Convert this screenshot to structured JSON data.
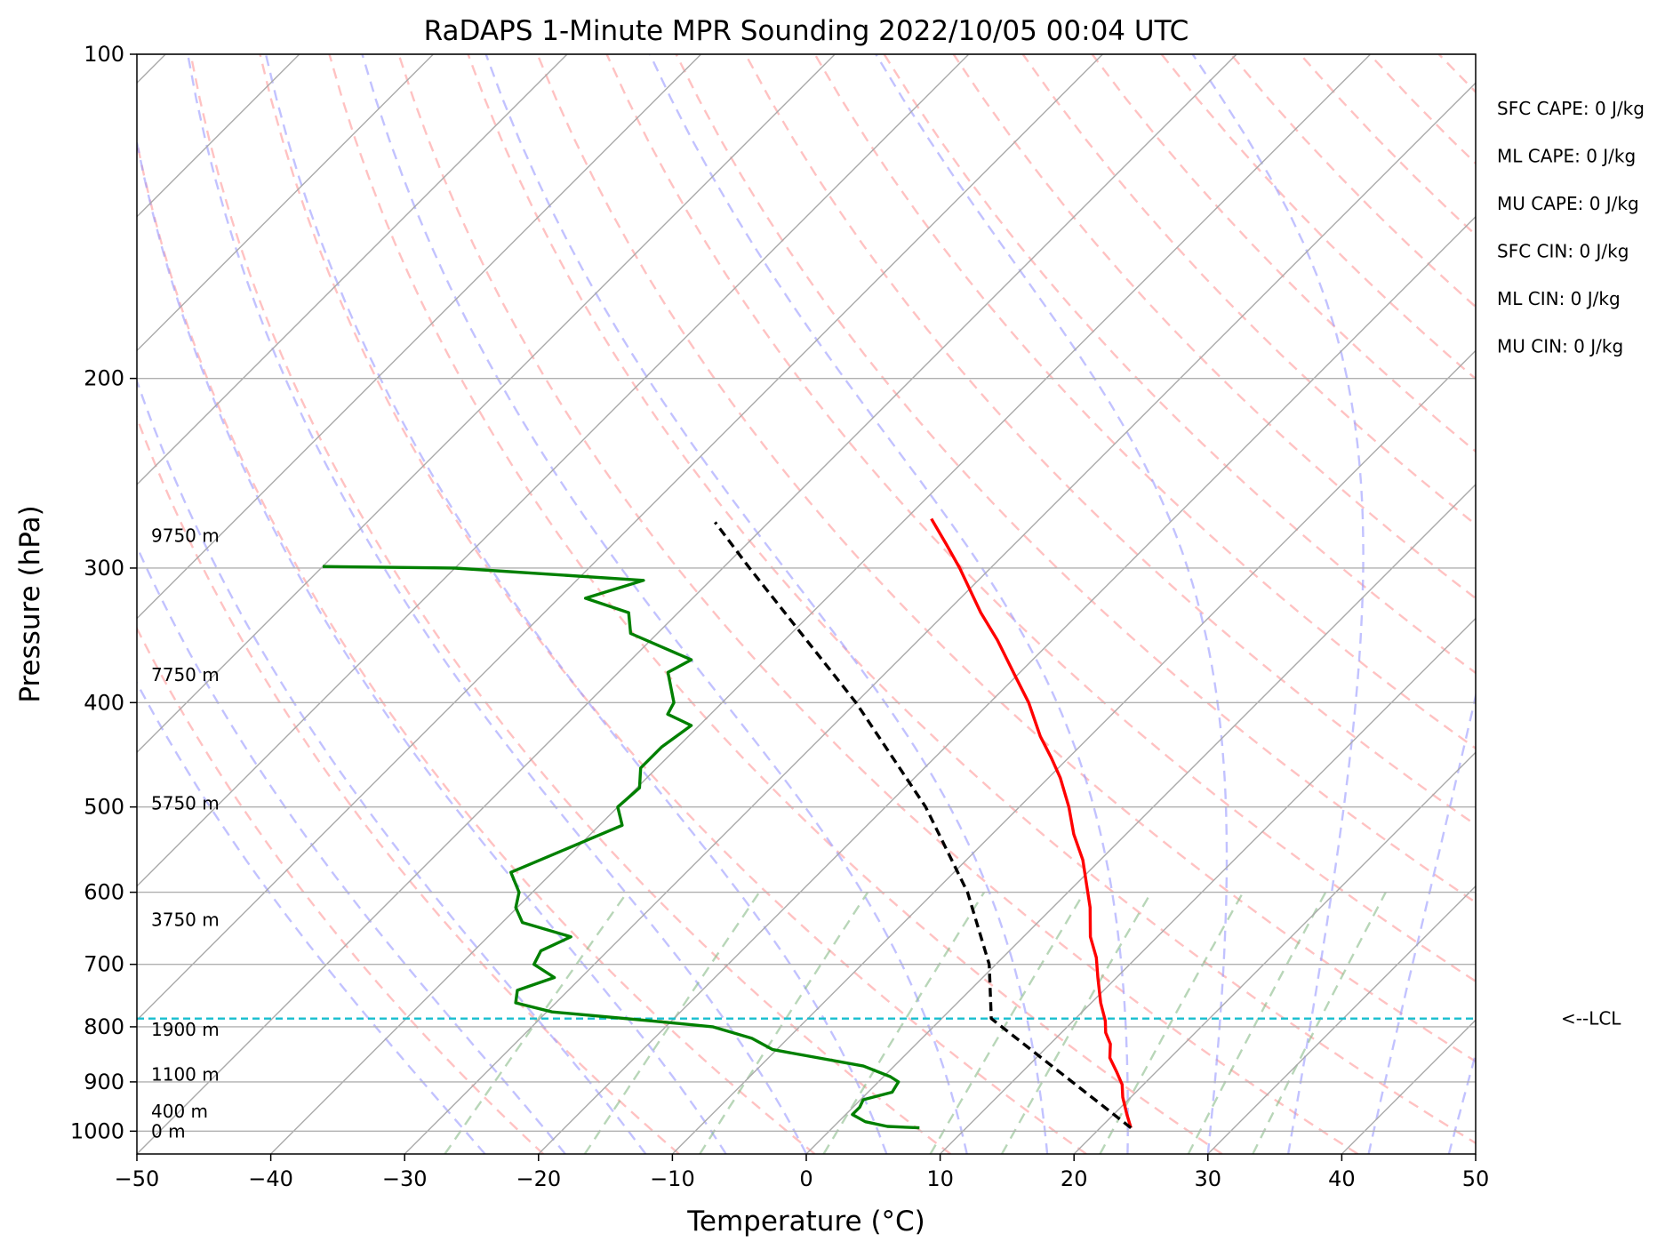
{
  "chart_data": {
    "type": "line",
    "title": "RaDAPS 1-Minute MPR Sounding 2022/10/05 00:04 UTC",
    "xlabel": "Temperature (°C)",
    "ylabel": "Pressure (hPa)",
    "xlim": [
      -50,
      50
    ],
    "ylim": [
      1050,
      100
    ],
    "y_scale": "log",
    "skew": "skew-T log-P",
    "grid": true,
    "xticks": [
      -50,
      -40,
      -30,
      -20,
      -10,
      0,
      10,
      20,
      30,
      40,
      50
    ],
    "xtick_labels": [
      "−50",
      "−40",
      "−30",
      "−20",
      "−10",
      "0",
      "10",
      "20",
      "30",
      "40",
      "50"
    ],
    "yticks": [
      100,
      200,
      300,
      400,
      500,
      600,
      700,
      800,
      900,
      1000
    ],
    "ytick_labels": [
      "100",
      "200",
      "300",
      "400",
      "500",
      "600",
      "700",
      "800",
      "900",
      "1000"
    ],
    "series": [
      {
        "role": "temperature",
        "color": "#ff0000",
        "style": "solid",
        "points": [
          {
            "p": 993,
            "t": 22.3
          },
          {
            "p": 965,
            "t": 21.0
          },
          {
            "p": 930,
            "t": 19.4
          },
          {
            "p": 905,
            "t": 18.4
          },
          {
            "p": 880,
            "t": 17.0
          },
          {
            "p": 855,
            "t": 15.5
          },
          {
            "p": 830,
            "t": 14.5
          },
          {
            "p": 810,
            "t": 13.3
          },
          {
            "p": 790,
            "t": 12.4
          },
          {
            "p": 760,
            "t": 10.7
          },
          {
            "p": 720,
            "t": 8.6
          },
          {
            "p": 690,
            "t": 7.0
          },
          {
            "p": 660,
            "t": 5.0
          },
          {
            "p": 620,
            "t": 2.8
          },
          {
            "p": 590,
            "t": 0.8
          },
          {
            "p": 560,
            "t": -1.3
          },
          {
            "p": 530,
            "t": -3.9
          },
          {
            "p": 500,
            "t": -6.3
          },
          {
            "p": 470,
            "t": -9.1
          },
          {
            "p": 450,
            "t": -11.3
          },
          {
            "p": 430,
            "t": -13.7
          },
          {
            "p": 400,
            "t": -17.1
          },
          {
            "p": 380,
            "t": -19.8
          },
          {
            "p": 350,
            "t": -24.1
          },
          {
            "p": 330,
            "t": -27.4
          },
          {
            "p": 300,
            "t": -32.3
          },
          {
            "p": 285,
            "t": -35.1
          },
          {
            "p": 270,
            "t": -38.1
          }
        ]
      },
      {
        "role": "dewpoint",
        "color": "#008000",
        "style": "solid",
        "points": [
          {
            "p": 993,
            "t": 6.5
          },
          {
            "p": 990,
            "t": 4.0
          },
          {
            "p": 980,
            "t": 2.0
          },
          {
            "p": 965,
            "t": 0.5
          },
          {
            "p": 950,
            "t": 0.5
          },
          {
            "p": 935,
            "t": 0.2
          },
          {
            "p": 920,
            "t": 1.8
          },
          {
            "p": 900,
            "t": 1.5
          },
          {
            "p": 890,
            "t": 0.5
          },
          {
            "p": 870,
            "t": -2.3
          },
          {
            "p": 840,
            "t": -10.3
          },
          {
            "p": 820,
            "t": -12.7
          },
          {
            "p": 800,
            "t": -16.5
          },
          {
            "p": 790,
            "t": -21.5
          },
          {
            "p": 775,
            "t": -29.6
          },
          {
            "p": 760,
            "t": -33.0
          },
          {
            "p": 740,
            "t": -33.8
          },
          {
            "p": 720,
            "t": -32.0
          },
          {
            "p": 700,
            "t": -34.5
          },
          {
            "p": 680,
            "t": -35.0
          },
          {
            "p": 660,
            "t": -33.8
          },
          {
            "p": 640,
            "t": -38.5
          },
          {
            "p": 620,
            "t": -40.1
          },
          {
            "p": 600,
            "t": -41.0
          },
          {
            "p": 575,
            "t": -43.1
          },
          {
            "p": 520,
            "t": -38.3
          },
          {
            "p": 500,
            "t": -40.0
          },
          {
            "p": 480,
            "t": -39.8
          },
          {
            "p": 460,
            "t": -41.2
          },
          {
            "p": 440,
            "t": -41.2
          },
          {
            "p": 420,
            "t": -40.6
          },
          {
            "p": 410,
            "t": -43.2
          },
          {
            "p": 400,
            "t": -43.6
          },
          {
            "p": 375,
            "t": -46.3
          },
          {
            "p": 365,
            "t": -45.5
          },
          {
            "p": 345,
            "t": -52.0
          },
          {
            "p": 330,
            "t": -53.7
          },
          {
            "p": 320,
            "t": -58.0
          },
          {
            "p": 308,
            "t": -55.0
          },
          {
            "p": 300,
            "t": -70.0
          },
          {
            "p": 299,
            "t": -80.0
          }
        ]
      },
      {
        "role": "parcel",
        "color": "#000000",
        "style": "dashed",
        "points": [
          {
            "p": 993,
            "t": 22.3
          },
          {
            "p": 786,
            "t": 3.7
          },
          {
            "p": 700,
            "t": -0.5
          },
          {
            "p": 600,
            "t": -7.5
          },
          {
            "p": 500,
            "t": -17.0
          },
          {
            "p": 400,
            "t": -30.0
          },
          {
            "p": 300,
            "t": -48.0
          },
          {
            "p": 272,
            "t": -54.0
          }
        ]
      }
    ],
    "lcl": {
      "p": 786,
      "label": "<--LCL",
      "color": "#17becf"
    },
    "height_labels": [
      {
        "p": 1000,
        "label": "0 m"
      },
      {
        "p": 958,
        "label": "400 m"
      },
      {
        "p": 886,
        "label": "1100 m"
      },
      {
        "p": 805,
        "label": "1900 m"
      },
      {
        "p": 636,
        "label": "3750 m"
      },
      {
        "p": 496,
        "label": "5750 m"
      },
      {
        "p": 377,
        "label": "7750 m"
      },
      {
        "p": 280,
        "label": "9750 m"
      }
    ],
    "stats": [
      "SFC CAPE: 0 J/kg",
      "ML CAPE: 0 J/kg",
      "MU CAPE: 0 J/kg",
      "SFC CIN: 0 J/kg",
      "ML CIN: 0 J/kg",
      "MU CIN: 0 J/kg"
    ],
    "background_lines": {
      "isotherms_color": "#aaaaaa",
      "dry_adiabats_color": "#ff9999",
      "moist_adiabats_color": "#9999ff",
      "mixing_ratios_color": "#88bb88"
    }
  }
}
